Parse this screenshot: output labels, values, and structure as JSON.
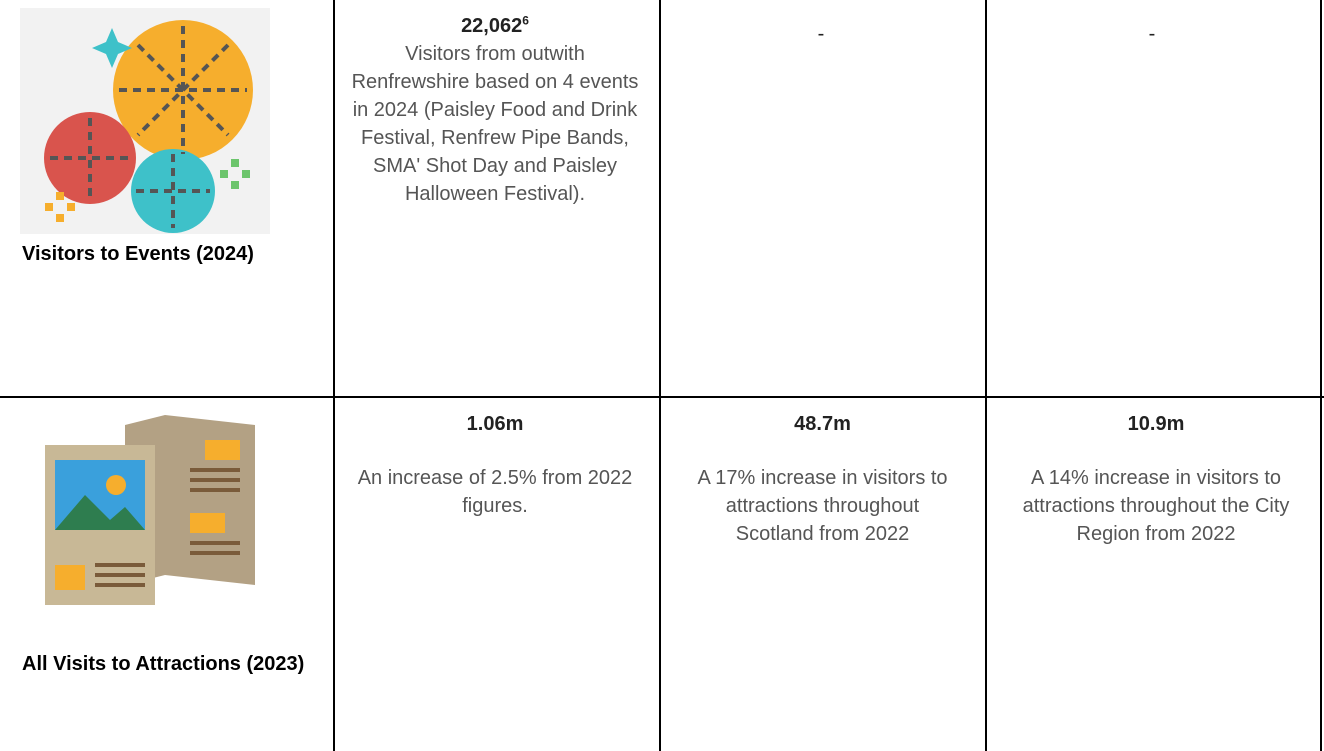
{
  "table": {
    "rows": [
      {
        "label": "Visitors to Events (2024)",
        "cells": [
          {
            "value": "22,062",
            "footnote": "6",
            "text": "Visitors from outwith Renfrewshire based on 4 events in 2024 (Paisley Food and Drink Festival, Renfrew Pipe Bands, SMA' Shot Day and Paisley Halloween Festival)."
          },
          {
            "value": "-"
          },
          {
            "value": "-"
          }
        ]
      },
      {
        "label": "All Visits to Attractions (2023)",
        "cells": [
          {
            "value": "1.06m",
            "text": "An increase of 2.5% from 2022 figures."
          },
          {
            "value": "48.7m",
            "text": "A 17% increase in visitors to attractions throughout Scotland from 2022"
          },
          {
            "value": "10.9m",
            "text": "A 14% increase in visitors to attractions throughout the City Region from 2022"
          }
        ]
      }
    ]
  }
}
